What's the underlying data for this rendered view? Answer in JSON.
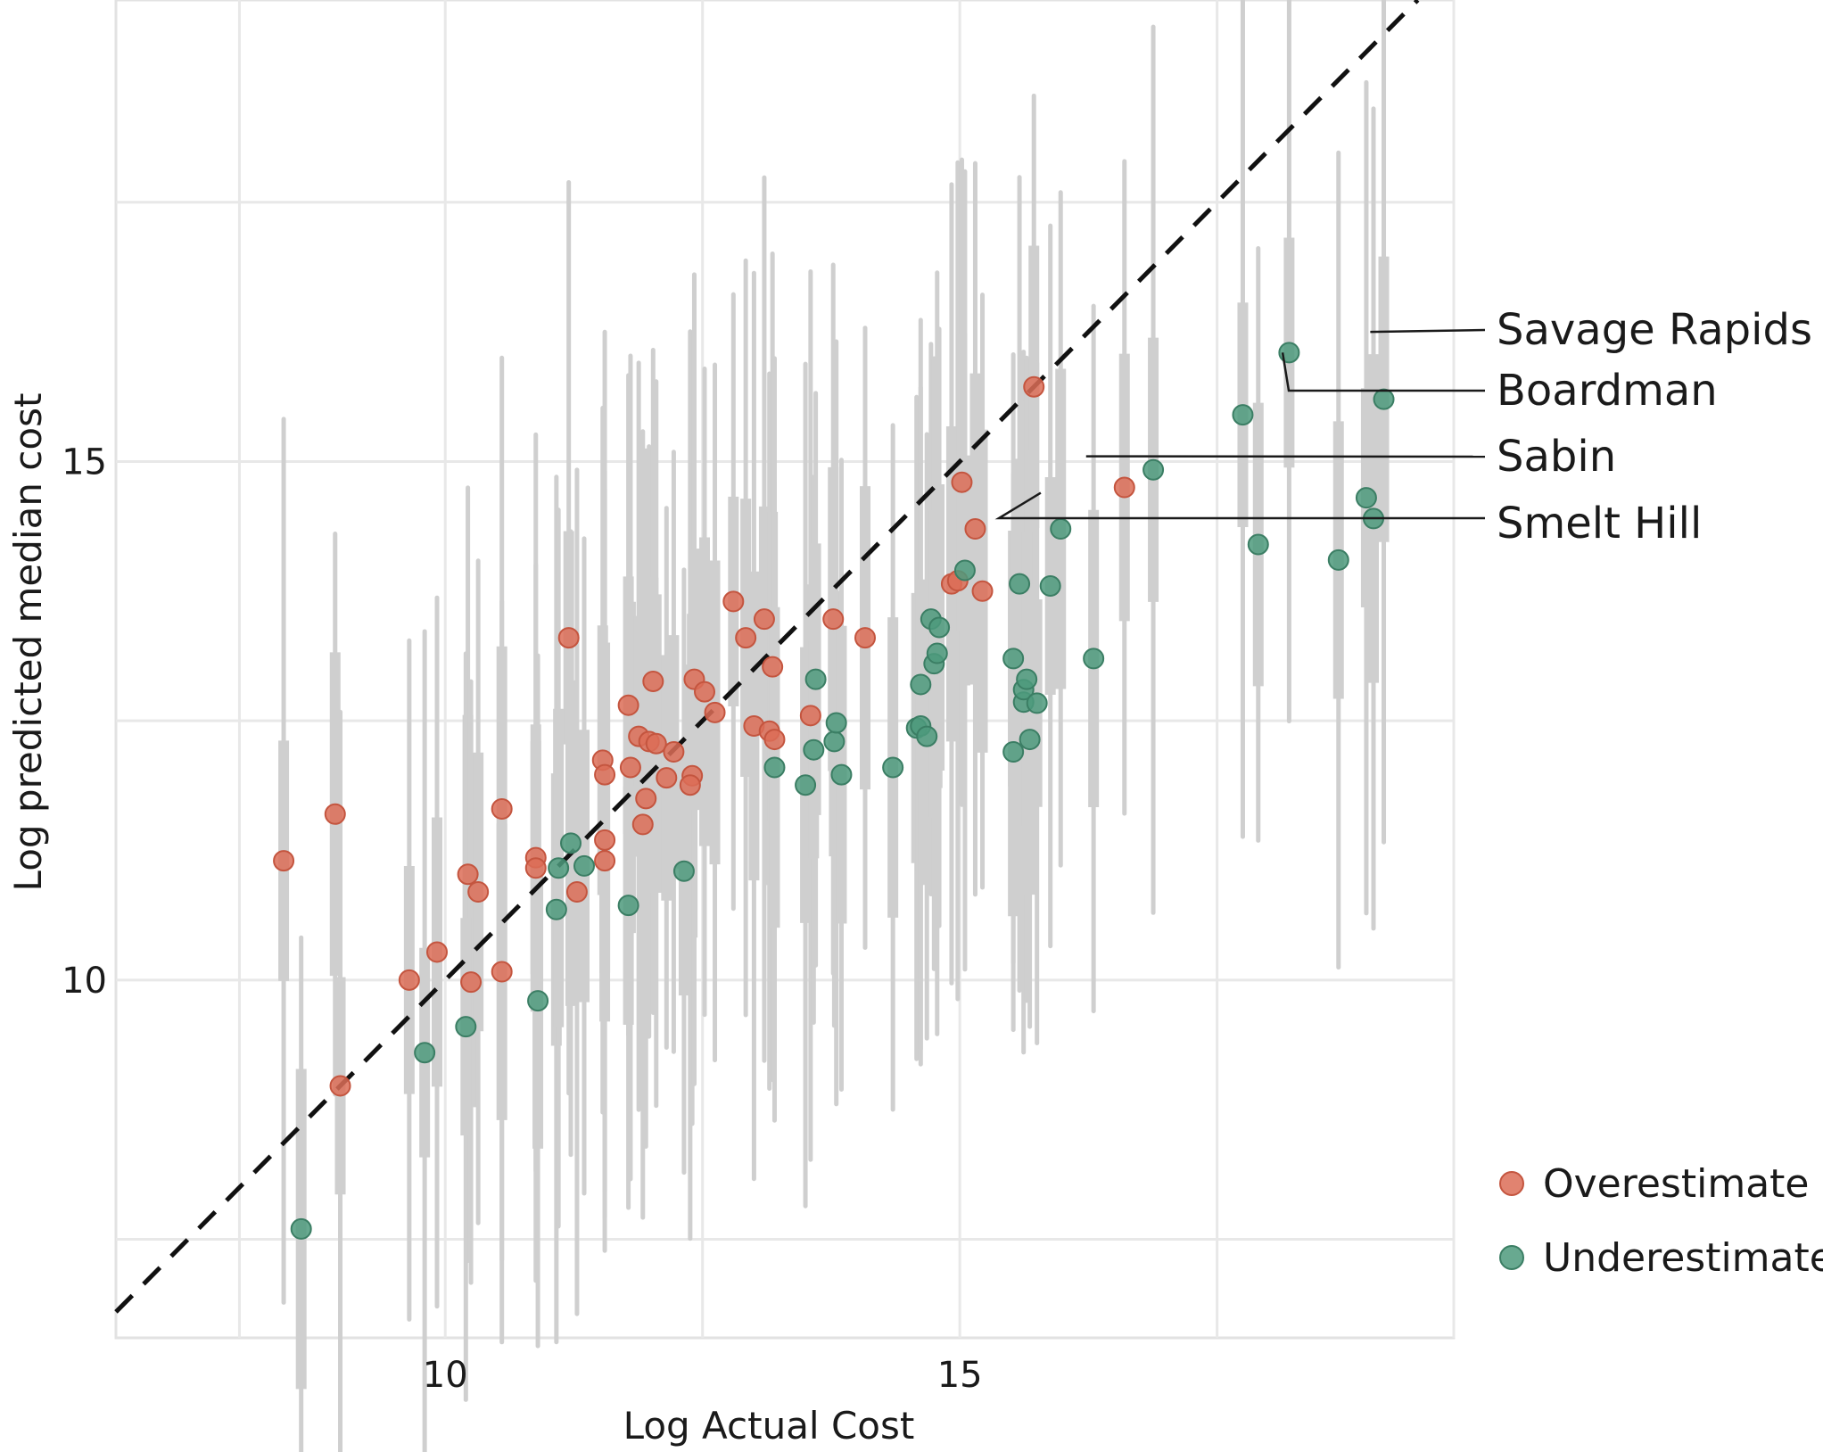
{
  "chart_data": {
    "type": "scatter",
    "title": "",
    "xlabel": "Log Actual Cost",
    "ylabel": "Log predicted median cost",
    "xlim": [
      6.8,
      19.8
    ],
    "ylim": [
      6.55,
      19.45
    ],
    "xticks": [
      10,
      15
    ],
    "yticks": [
      10,
      15
    ],
    "grid": true,
    "grid_x": [
      8,
      10,
      12.5,
      15,
      17.5,
      19.8
    ],
    "grid_y": [
      7.5,
      10,
      12.5,
      15,
      17.5
    ],
    "reference_line": "y = x",
    "legend_position": "bottom-right",
    "colors": {
      "Overestimate": "#dc6d57",
      "Underestimate": "#4d9a7d",
      "interval": "#cfcfcf"
    },
    "series": [
      {
        "name": "Overestimate",
        "points": [
          [
            8.43,
            11.15
          ],
          [
            8.93,
            11.6
          ],
          [
            8.98,
            8.98
          ],
          [
            9.65,
            10.0
          ],
          [
            9.92,
            10.27
          ],
          [
            10.22,
            11.02
          ],
          [
            10.25,
            9.98
          ],
          [
            10.32,
            10.85
          ],
          [
            10.55,
            10.08
          ],
          [
            10.55,
            11.65
          ],
          [
            10.88,
            11.18
          ],
          [
            10.88,
            11.08
          ],
          [
            11.2,
            13.3
          ],
          [
            11.28,
            10.85
          ],
          [
            11.53,
            12.12
          ],
          [
            11.55,
            11.98
          ],
          [
            11.55,
            11.35
          ],
          [
            11.55,
            11.15
          ],
          [
            11.78,
            12.65
          ],
          [
            11.8,
            12.05
          ],
          [
            11.88,
            12.35
          ],
          [
            11.92,
            11.5
          ],
          [
            11.95,
            11.75
          ],
          [
            11.98,
            12.3
          ],
          [
            12.02,
            12.88
          ],
          [
            12.05,
            12.28
          ],
          [
            12.15,
            11.95
          ],
          [
            12.22,
            12.2
          ],
          [
            12.4,
            11.97
          ],
          [
            12.38,
            11.88
          ],
          [
            12.42,
            12.9
          ],
          [
            12.52,
            12.78
          ],
          [
            12.62,
            12.58
          ],
          [
            12.8,
            13.65
          ],
          [
            12.92,
            13.3
          ],
          [
            13.0,
            12.45
          ],
          [
            13.1,
            13.48
          ],
          [
            13.15,
            12.4
          ],
          [
            13.18,
            13.02
          ],
          [
            13.2,
            12.32
          ],
          [
            13.55,
            12.55
          ],
          [
            13.77,
            13.48
          ],
          [
            14.08,
            13.3
          ],
          [
            14.92,
            13.82
          ],
          [
            14.98,
            13.85
          ],
          [
            15.02,
            14.8
          ],
          [
            15.15,
            14.35
          ],
          [
            15.22,
            13.75
          ],
          [
            15.72,
            15.72
          ],
          [
            16.6,
            14.75
          ]
        ]
      },
      {
        "name": "Underestimate",
        "points": [
          [
            8.6,
            7.6
          ],
          [
            9.8,
            9.3
          ],
          [
            10.2,
            9.55
          ],
          [
            10.9,
            9.8
          ],
          [
            11.08,
            10.68
          ],
          [
            11.1,
            11.08
          ],
          [
            11.22,
            11.32
          ],
          [
            11.35,
            11.1
          ],
          [
            11.78,
            10.72
          ],
          [
            12.32,
            11.05
          ],
          [
            13.2,
            12.05
          ],
          [
            13.5,
            11.88
          ],
          [
            13.58,
            12.22
          ],
          [
            13.6,
            12.9
          ],
          [
            13.78,
            12.3
          ],
          [
            13.8,
            12.48
          ],
          [
            13.85,
            11.98
          ],
          [
            14.35,
            12.05
          ],
          [
            14.58,
            12.43
          ],
          [
            14.62,
            12.45
          ],
          [
            14.62,
            12.85
          ],
          [
            14.68,
            12.35
          ],
          [
            14.72,
            13.48
          ],
          [
            14.75,
            13.05
          ],
          [
            14.78,
            13.15
          ],
          [
            14.8,
            13.4
          ],
          [
            15.05,
            13.95
          ],
          [
            15.52,
            13.1
          ],
          [
            15.52,
            12.2
          ],
          [
            15.58,
            13.82
          ],
          [
            15.62,
            12.68
          ],
          [
            15.62,
            12.8
          ],
          [
            15.65,
            12.9
          ],
          [
            15.68,
            12.32
          ],
          [
            15.75,
            12.67
          ],
          [
            15.88,
            13.8
          ],
          [
            15.98,
            14.35
          ],
          [
            16.3,
            13.1
          ],
          [
            16.88,
            14.92
          ],
          [
            17.75,
            15.45
          ],
          [
            17.9,
            14.2
          ],
          [
            18.2,
            16.05
          ],
          [
            18.68,
            14.05
          ],
          [
            18.95,
            14.65
          ],
          [
            19.02,
            14.45
          ],
          [
            19.12,
            15.6
          ]
        ]
      }
    ],
    "annotations": [
      {
        "label": "Savage Rapids",
        "x": 18.85,
        "y": 16.25
      },
      {
        "label": "Boardman",
        "x": 18.05,
        "y": 16.05
      },
      {
        "label": "Sabin",
        "x": 16.08,
        "y": 15.05
      },
      {
        "label": "Smelt Hill",
        "x": 15.7,
        "y": 14.75
      }
    ],
    "legend": [
      "Overestimate",
      "Underestimate"
    ]
  }
}
